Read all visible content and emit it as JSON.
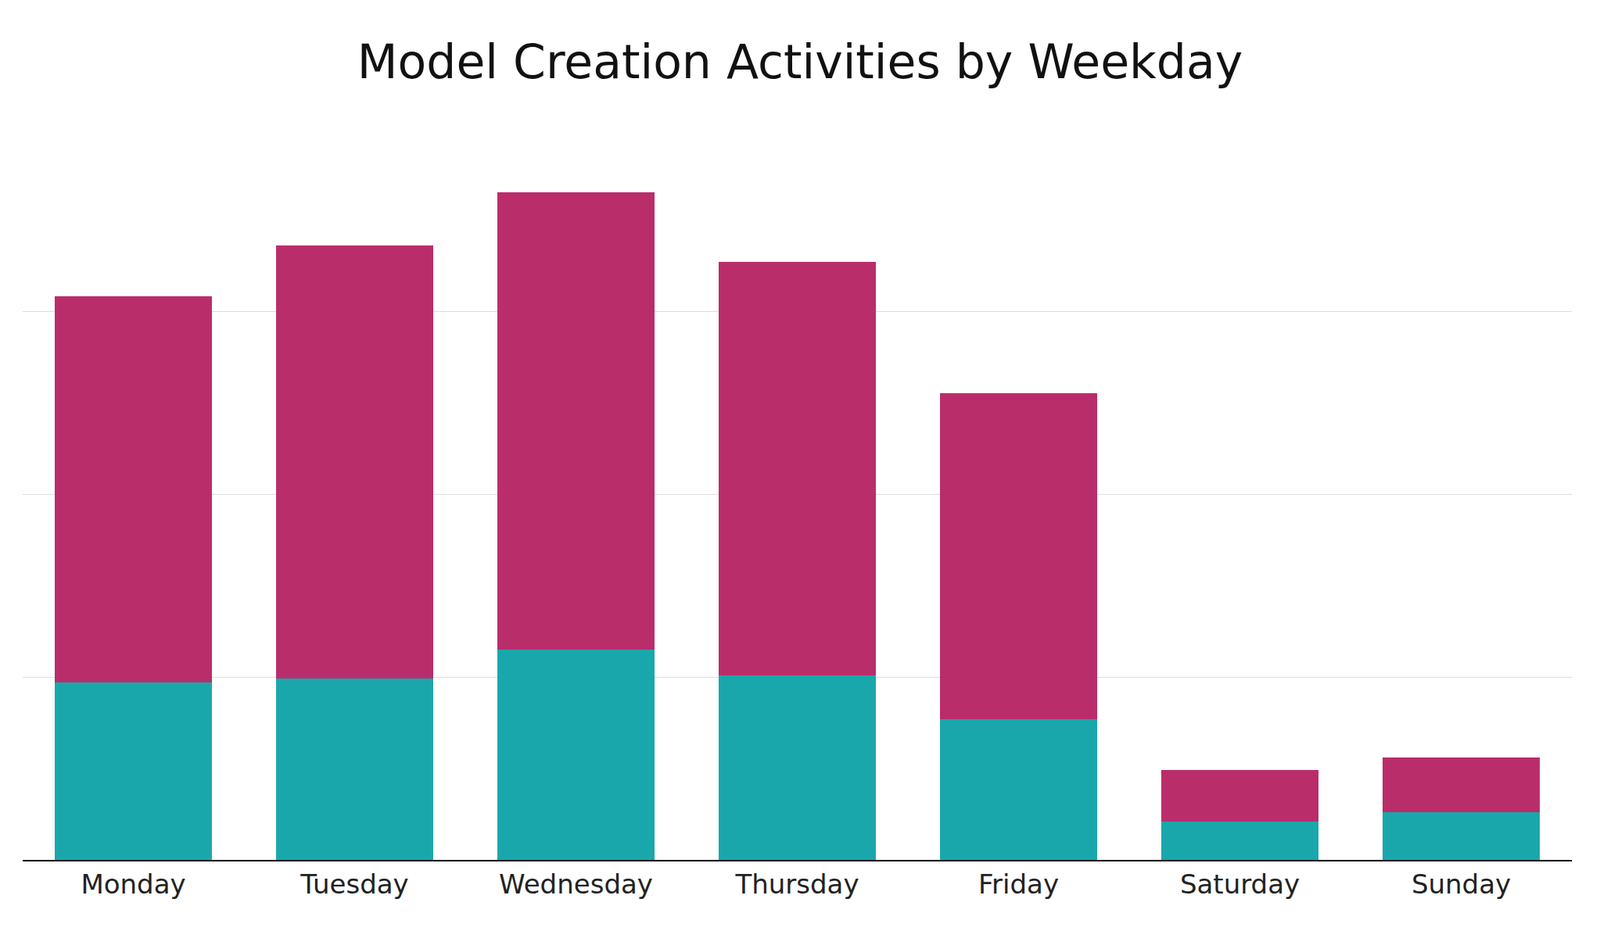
{
  "chart_data": {
    "type": "bar",
    "title": "Model Creation Activities by Weekday",
    "categories": [
      "Monday",
      "Tuesday",
      "Wednesday",
      "Thursday",
      "Friday",
      "Saturday",
      "Sunday"
    ],
    "series": [
      {
        "color": "#1aa7ac",
        "values": [
          97,
          99,
          115,
          101,
          77,
          21,
          26
        ]
      },
      {
        "color": "#ba2d6b",
        "values": [
          211,
          237,
          250,
          226,
          178,
          28,
          30
        ]
      }
    ],
    "stacked": true,
    "ylim": [
      0,
      400
    ],
    "yticks": [
      0,
      100,
      200,
      300,
      400
    ],
    "grid": true,
    "tick_labels": "x"
  }
}
